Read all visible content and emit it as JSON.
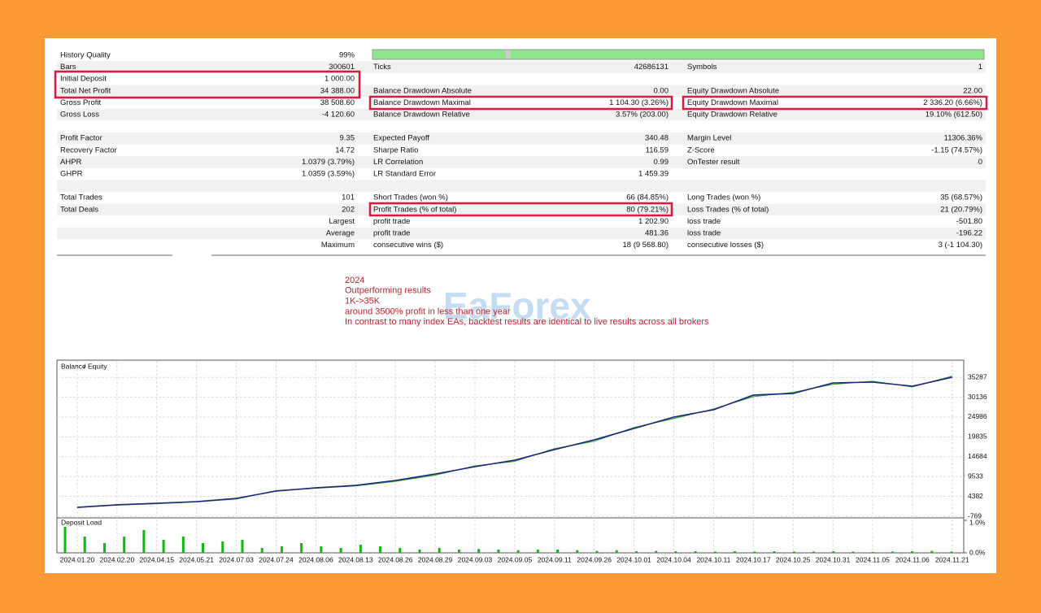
{
  "table": {
    "rows": [
      [
        [
          "History Quality",
          "99%"
        ]
      ],
      [
        [
          "Bars",
          "300601"
        ],
        [
          "Ticks",
          "42686131"
        ],
        [
          "Symbols",
          "1"
        ]
      ],
      [
        [
          "Initial Deposit",
          "1 000.00"
        ]
      ],
      [
        [
          "Total Net Profit",
          "34 388.00"
        ],
        [
          "Balance Drawdown Absolute",
          "0.00"
        ],
        [
          "Equity Drawdown Absolute",
          "22.00"
        ]
      ],
      [
        [
          "Gross Profit",
          "38 508.60"
        ],
        [
          "Balance Drawdown Maximal",
          "1 104.30 (3.26%)"
        ],
        [
          "Equity Drawdown Maximal",
          "2 336.20 (6.66%)"
        ]
      ],
      [
        [
          "Gross Loss",
          "-4 120.60"
        ],
        [
          "Balance Drawdown Relative",
          "3.57% (203.00)"
        ],
        [
          "Equity Drawdown Relative",
          "19.10% (612.50)"
        ]
      ],
      [],
      [
        [
          "Profit Factor",
          "9.35"
        ],
        [
          "Expected Payoff",
          "340.48"
        ],
        [
          "Margin Level",
          "11306.36%"
        ]
      ],
      [
        [
          "Recovery Factor",
          "14.72"
        ],
        [
          "Sharpe Ratio",
          "116.59"
        ],
        [
          "Z-Score",
          "-1.15 (74.57%)"
        ]
      ],
      [
        [
          "AHPR",
          "1.0379 (3.79%)"
        ],
        [
          "LR Correlation",
          "0.99"
        ],
        [
          "OnTester result",
          "0"
        ]
      ],
      [
        [
          "GHPR",
          "1.0359 (3.59%)"
        ],
        [
          "LR Standard Error",
          "1 459.39"
        ]
      ],
      [],
      [
        [
          "Total Trades",
          "101"
        ],
        [
          "Short Trades (won %)",
          "66 (84.85%)"
        ],
        [
          "Long Trades (won %)",
          "35 (68.57%)"
        ]
      ],
      [
        [
          "Total Deals",
          "202"
        ],
        [
          "Profit Trades (% of total)",
          "80 (79.21%)"
        ],
        [
          "Loss Trades (% of total)",
          "21 (20.79%)"
        ]
      ],
      [
        [
          "Largest"
        ],
        [
          "profit trade",
          "1 202.90"
        ],
        [
          "loss trade",
          "-501.80"
        ]
      ],
      [
        [
          "Average"
        ],
        [
          "profit trade",
          "481.36"
        ],
        [
          "loss trade",
          "-196.22"
        ]
      ],
      [
        [
          "Maximum"
        ],
        [
          "consecutive wins ($)",
          "18 (9 568.80)"
        ],
        [
          "consecutive losses ($)",
          "3 (-1 104.30)"
        ]
      ]
    ]
  },
  "annotation": {
    "lines": [
      "2024",
      "Outperforming results",
      "1K->35K",
      "around 3500% profit in less than one year",
      "In contrast to many index EAs, backtest results are identical to live results across all brokers"
    ]
  },
  "watermark": "EaForex",
  "balance_chart": {
    "type": "line",
    "legend_separator": "/",
    "categories": [
      "2024.01.20",
      "2024.02.20",
      "2024.04.15",
      "2024.05.21",
      "2024.07.03",
      "2024.07.24",
      "2024.08.06",
      "2024.08.13",
      "2024.08.26",
      "2024.08.29",
      "2024.09.03",
      "2024.09.05",
      "2024.09.11",
      "2024.09.26",
      "2024.10.01",
      "2024.10.04",
      "2024.10.11",
      "2024.10.17",
      "2024.10.25",
      "2024.10.31",
      "2024.11.05",
      "2024.11.06",
      "2024.11.21"
    ],
    "series": [
      {
        "name": "Balance",
        "color": "#1a237e",
        "values": [
          1550,
          2190,
          2610,
          3030,
          3875,
          5775,
          6620,
          7250,
          8520,
          10210,
          12110,
          13800,
          16540,
          19080,
          22030,
          24990,
          26890,
          30690,
          31110,
          33850,
          34060,
          33010,
          35330
        ]
      },
      {
        "name": "Equity",
        "color": "#2ea52e",
        "values": [
          1500,
          2150,
          2500,
          2950,
          3700,
          5900,
          6500,
          7100,
          8300,
          9900,
          12300,
          13500,
          16800,
          18700,
          22300,
          24600,
          27100,
          30300,
          31400,
          33500,
          34300,
          32800,
          35600
        ]
      }
    ],
    "ylim": [
      -769,
      39340
    ],
    "yticks": [
      35287,
      30136,
      24986,
      19835,
      14684,
      9533,
      4382,
      -769
    ],
    "grid": true,
    "deposit_load": {
      "title": "Deposit Load",
      "color": "#13b513",
      "values": [
        0.8,
        0.5,
        0.3,
        0.5,
        0.7,
        0.4,
        0.5,
        0.3,
        0.35,
        0.4,
        0.15,
        0.2,
        0.3,
        0.2,
        0.15,
        0.25,
        0.2,
        0.15,
        0.1,
        0.15,
        0.1,
        0.12,
        0.1,
        0.08,
        0.1,
        0.1,
        0.08,
        0.06,
        0.08,
        0.05,
        0.06,
        0.05,
        0.05,
        0.04,
        0.05,
        0.04,
        0.05,
        0.04,
        0.04,
        0.05,
        0.04,
        0.03,
        0.04,
        0.05,
        0.06,
        0.04
      ],
      "ylim": [
        0,
        1
      ],
      "yticks": [
        {
          "value": 1,
          "label": "1.0%"
        },
        {
          "value": 0,
          "label": "0.0%"
        }
      ]
    }
  }
}
